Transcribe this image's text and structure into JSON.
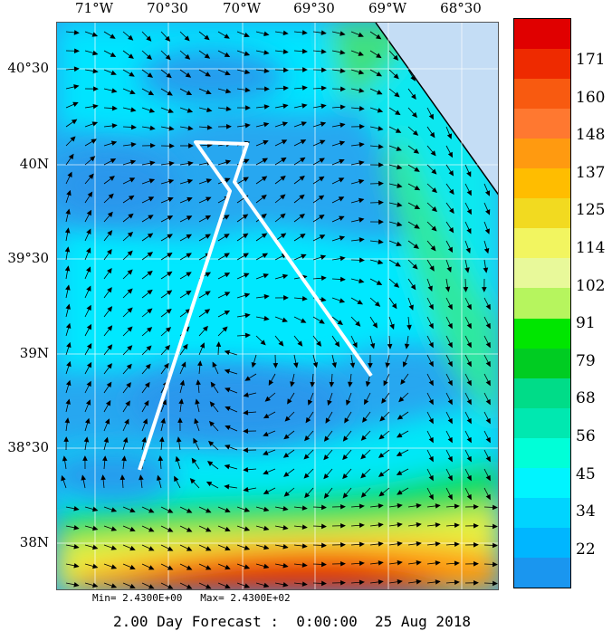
{
  "map": {
    "lon_labels": [
      "71°W",
      "70°30",
      "70°W",
      "69°30",
      "69°W",
      "68°30"
    ],
    "lat_labels": [
      "40°30",
      "40N",
      "39°30",
      "39N",
      "38°30",
      "38N"
    ]
  },
  "colorbar": {
    "labels": [
      "171",
      "160",
      "148",
      "137",
      "125",
      "114",
      "102",
      "91",
      "79",
      "68",
      "56",
      "45",
      "34",
      "22"
    ],
    "colors": [
      "#e00000",
      "#ee2a00",
      "#f85a10",
      "#ff7830",
      "#ff9a10",
      "#ffbd00",
      "#f2da20",
      "#f2f560",
      "#e8f99a",
      "#b6f55e",
      "#00e600",
      "#00cc22",
      "#00dc88",
      "#00e8b0",
      "#00ffd8",
      "#00f4ff",
      "#00d4ff",
      "#00b6ff",
      "#1a96ef"
    ]
  },
  "stats": {
    "min_label": "Min=",
    "min_value": "2.4300E+00",
    "max_label": "Max=",
    "max_value": "2.4300E+02"
  },
  "footer": {
    "forecast": "2.00 Day Forecast :",
    "time": "0:00:00",
    "date": "25 Aug 2018"
  },
  "colors": {
    "land": "#c4ddf5",
    "track": "#ffffff",
    "grid": "#ffffff",
    "coast": "#000000"
  }
}
